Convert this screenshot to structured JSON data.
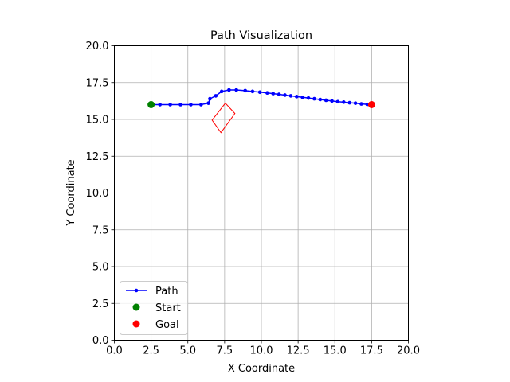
{
  "chart_data": {
    "type": "line",
    "title": "Path Visualization",
    "xlabel": "X Coordinate",
    "ylabel": "Y Coordinate",
    "xlim": [
      0,
      20
    ],
    "ylim": [
      0,
      20
    ],
    "xticks": [
      "0.0",
      "2.5",
      "5.0",
      "7.5",
      "10.0",
      "12.5",
      "15.0",
      "17.5",
      "20.0"
    ],
    "yticks": [
      "0.0",
      "2.5",
      "5.0",
      "7.5",
      "10.0",
      "12.5",
      "15.0",
      "17.5",
      "20.0"
    ],
    "grid": true,
    "legend_position": "lower-left",
    "series": [
      {
        "name": "Path",
        "color": "#0000ff",
        "marker": "dot",
        "x": [
          2.5,
          3.1,
          3.8,
          4.5,
          5.2,
          5.9,
          6.4,
          6.5,
          6.9,
          7.3,
          7.8,
          8.3,
          8.9,
          9.4,
          9.9,
          10.4,
          10.8,
          11.2,
          11.6,
          12.0,
          12.4,
          12.8,
          13.2,
          13.6,
          14.0,
          14.4,
          14.8,
          15.2,
          15.6,
          16.0,
          16.4,
          16.8,
          17.2,
          17.5
        ],
        "y": [
          16.0,
          16.0,
          16.0,
          16.0,
          16.0,
          16.0,
          16.1,
          16.4,
          16.6,
          16.9,
          17.0,
          17.0,
          16.95,
          16.9,
          16.85,
          16.8,
          16.75,
          16.7,
          16.65,
          16.6,
          16.55,
          16.5,
          16.45,
          16.4,
          16.35,
          16.3,
          16.25,
          16.2,
          16.17,
          16.13,
          16.1,
          16.05,
          16.02,
          16.0
        ]
      },
      {
        "name": "Start",
        "color": "#008000",
        "marker": "circle",
        "x": [
          2.5
        ],
        "y": [
          16.0
        ]
      },
      {
        "name": "Goal",
        "color": "#ff0000",
        "marker": "circle",
        "x": [
          17.5
        ],
        "y": [
          16.0
        ]
      }
    ],
    "obstacle": {
      "color": "#ff0000",
      "fill": "none",
      "polygon_x": [
        7.25,
        8.2,
        7.55,
        6.65
      ],
      "polygon_y": [
        14.1,
        15.4,
        16.1,
        14.95
      ]
    }
  }
}
